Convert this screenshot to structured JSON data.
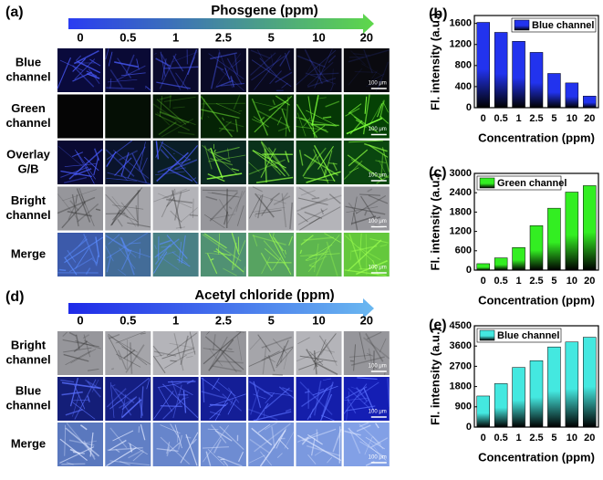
{
  "image_panels": [
    {
      "label": "(a)",
      "title": "Phosgene (ppm)",
      "columns": [
        "0",
        "0.5",
        "1",
        "2.5",
        "5",
        "10",
        "20"
      ],
      "rows": [
        [
          "Blue",
          "channel"
        ],
        [
          "Green",
          "channel"
        ],
        [
          "Overlay",
          "G/B"
        ],
        [
          "Bright",
          "channel"
        ],
        [
          "Merge"
        ]
      ]
    },
    {
      "label": "(d)",
      "title": "Acetyl chloride (ppm)",
      "columns": [
        "0",
        "0.5",
        "1",
        "2.5",
        "5",
        "10",
        "20"
      ],
      "rows": [
        [
          "Bright",
          "channel"
        ],
        [
          "Blue",
          "channel"
        ],
        [
          "Merge"
        ]
      ]
    }
  ],
  "scale_bar": "100 μm",
  "chart_data": [
    {
      "type": "bar",
      "label": "(b)",
      "xlabel": "Concentration (ppm)",
      "ylabel": "Fl. intensity (a.u.)",
      "categories": [
        "0",
        "0.5",
        "1",
        "2.5",
        "5",
        "10",
        "20"
      ],
      "series": [
        {
          "name": "Blue channel",
          "color": "#2233ee",
          "values": [
            1620,
            1430,
            1260,
            1050,
            650,
            470,
            220
          ]
        }
      ],
      "ylim": [
        0,
        1750
      ],
      "yticks": [
        0,
        400,
        800,
        1200,
        1600
      ],
      "legend": "upper right"
    },
    {
      "type": "bar",
      "label": "(c)",
      "xlabel": "Concentration (ppm)",
      "ylabel": "Fl. intensity (a.u.)",
      "categories": [
        "0",
        "0.5",
        "1",
        "2.5",
        "5",
        "10",
        "20"
      ],
      "series": [
        {
          "name": "Green channel",
          "color": "#33ee22",
          "values": [
            200,
            380,
            700,
            1380,
            1920,
            2420,
            2620
          ]
        }
      ],
      "ylim": [
        0,
        3000
      ],
      "yticks": [
        0,
        600,
        1200,
        1800,
        2400,
        3000
      ],
      "legend": "upper left"
    },
    {
      "type": "bar",
      "label": "(e)",
      "xlabel": "Concentration (ppm)",
      "ylabel": "Fl. intensity (a.u.)",
      "categories": [
        "0",
        "0.5",
        "1",
        "2.5",
        "5",
        "10",
        "20"
      ],
      "series": [
        {
          "name": "Blue channel",
          "color": "#44e8e0",
          "values": [
            1380,
            1930,
            2650,
            2950,
            3560,
            3780,
            3990
          ]
        }
      ],
      "ylim": [
        0,
        4500
      ],
      "yticks": [
        0,
        900,
        1800,
        2700,
        3600,
        4500
      ],
      "legend": "upper left"
    }
  ]
}
